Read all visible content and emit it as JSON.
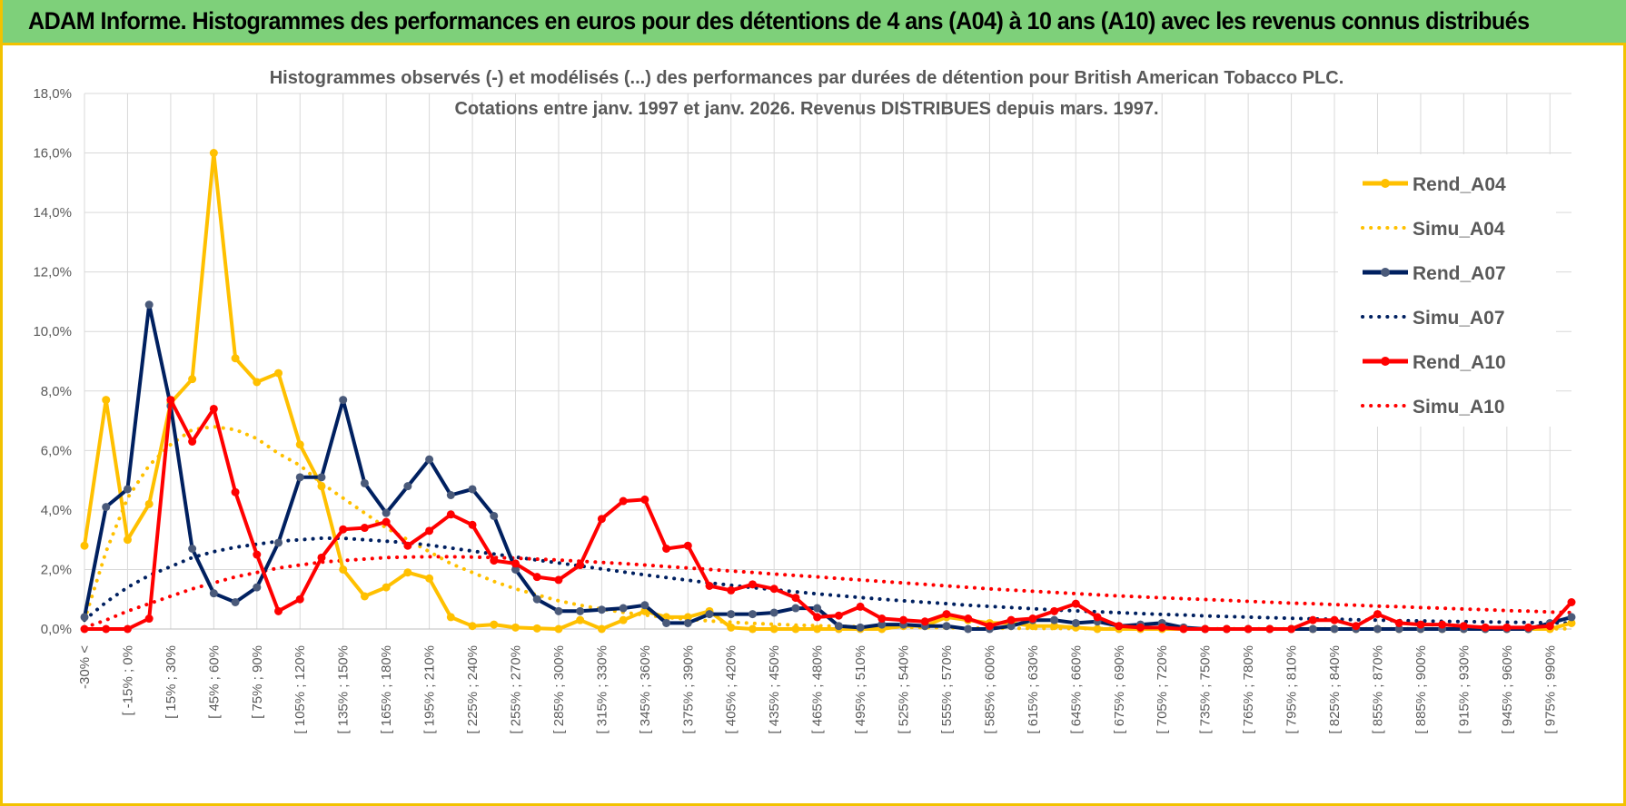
{
  "banner": {
    "title": "ADAM Informe. Histogrammes des performances en euros pour des détentions de 4 ans (A04) à 10 ans (A10) avec les revenus connus distribués"
  },
  "chart_data": {
    "type": "line",
    "title": "Histogrammes observés (-) et modélisés (...) des performances par durées de détention pour British American Tobacco PLC.",
    "subtitle": "Cotations entre janv. 1997 et janv. 2026. Revenus DISTRIBUES depuis mars. 1997.",
    "ylim": [
      0,
      18
    ],
    "y_ticks": [
      "0,0%",
      "2,0%",
      "4,0%",
      "6,0%",
      "8,0%",
      "10,0%",
      "12,0%",
      "14,0%",
      "16,0%",
      "18,0%"
    ],
    "x_tick_labels": [
      "-30% <",
      "[ -15% ; 0%",
      "[ 15% ; 30%",
      "[ 45% ; 60%",
      "[ 75% ; 90%",
      "[ 105% ; 120%",
      "[ 135% ; 150%",
      "[ 165% ; 180%",
      "[ 195% ; 210%",
      "[ 225% ; 240%",
      "[ 255% ; 270%",
      "[ 285% ; 300%",
      "[ 315% ; 330%",
      "[ 345% ; 360%",
      "[ 375% ; 390%",
      "[ 405% ; 420%",
      "[ 435% ; 450%",
      "[ 465% ; 480%",
      "[ 495% ; 510%",
      "[ 525% ; 540%",
      "[ 555% ; 570%",
      "[ 585% ; 600%",
      "[ 615% ; 630%",
      "[ 645% ; 660%",
      "[ 675% ; 690%",
      "[ 705% ; 720%",
      "[ 735% ; 750%",
      "[ 765% ; 780%",
      "[ 795% ; 810%",
      "[ 825% ; 840%",
      "[ 855% ; 870%",
      "[ 885% ; 900%",
      "[ 915% ; 930%",
      "[ 945% ; 960%",
      "[ 975% ; 990%"
    ],
    "n_points": 70,
    "grid": true,
    "legend_position": "right",
    "series": [
      {
        "name": "Rend_A04",
        "style": "solid",
        "color": "#FFC000",
        "values": [
          2.8,
          7.7,
          3.0,
          4.2,
          7.6,
          8.4,
          16.0,
          9.1,
          8.3,
          8.6,
          6.2,
          4.8,
          2.0,
          1.1,
          1.4,
          1.9,
          1.7,
          0.4,
          0.1,
          0.15,
          0.05,
          0.02,
          0.0,
          0.3,
          0.0,
          0.3,
          0.6,
          0.4,
          0.4,
          0.6,
          0.05,
          0.0,
          0.0,
          0.0,
          0.0,
          0.0,
          0.0,
          0.0,
          0.1,
          0.1,
          0.4,
          0.3,
          0.2,
          0.2,
          0.1,
          0.1,
          0.05,
          0.0,
          0.0,
          0.0,
          0.0,
          0.0,
          0.0,
          0.0,
          0.0,
          0.0,
          0.0,
          0.0,
          0.0,
          0.0,
          0.0,
          0.0,
          0.0,
          0.0,
          0.0,
          0.0,
          0.0,
          0.0,
          0.0,
          0.2
        ]
      },
      {
        "name": "Simu_A04",
        "style": "dotted",
        "color": "#FFC000",
        "values": [
          0.3,
          2.6,
          4.4,
          5.5,
          6.2,
          6.7,
          6.8,
          6.7,
          6.4,
          5.9,
          5.5,
          4.9,
          4.4,
          3.9,
          3.4,
          3.0,
          2.6,
          2.2,
          1.9,
          1.6,
          1.35,
          1.15,
          0.95,
          0.8,
          0.67,
          0.56,
          0.47,
          0.39,
          0.33,
          0.27,
          0.23,
          0.19,
          0.16,
          0.13,
          0.11,
          0.09,
          0.08,
          0.07,
          0.06,
          0.05,
          0.04,
          0.035,
          0.03,
          0.025,
          0.02,
          0.018,
          0.015,
          0.013,
          0.011,
          0.01,
          0.01,
          0.01,
          0.01,
          0.01,
          0.01,
          0.01,
          0.01,
          0.01,
          0.01,
          0.01,
          0.01,
          0.01,
          0.01,
          0.01,
          0.01,
          0.01,
          0.01,
          0.01,
          0.01,
          0.01
        ]
      },
      {
        "name": "Rend_A07",
        "style": "solid",
        "color": "#002060",
        "values": [
          0.4,
          4.1,
          4.7,
          10.9,
          7.5,
          2.7,
          1.2,
          0.9,
          1.4,
          2.9,
          5.1,
          5.1,
          7.7,
          4.9,
          3.9,
          4.8,
          5.7,
          4.5,
          4.7,
          3.8,
          2.0,
          1.0,
          0.6,
          0.6,
          0.65,
          0.7,
          0.8,
          0.2,
          0.2,
          0.5,
          0.5,
          0.5,
          0.55,
          0.7,
          0.7,
          0.1,
          0.05,
          0.15,
          0.15,
          0.1,
          0.1,
          0.0,
          0.0,
          0.1,
          0.3,
          0.3,
          0.2,
          0.25,
          0.1,
          0.15,
          0.2,
          0.05,
          0.0,
          0.0,
          0.0,
          0.0,
          0.0,
          0.0,
          0.0,
          0.0,
          0.0,
          0.0,
          0.0,
          0.0,
          0.0,
          0.0,
          0.0,
          0.0,
          0.2,
          0.4
        ]
      },
      {
        "name": "Simu_A07",
        "style": "dotted",
        "color": "#002060",
        "values": [
          0.3,
          0.9,
          1.4,
          1.8,
          2.1,
          2.4,
          2.6,
          2.75,
          2.85,
          2.95,
          3.0,
          3.05,
          3.05,
          3.0,
          2.95,
          2.9,
          2.82,
          2.72,
          2.62,
          2.52,
          2.42,
          2.32,
          2.22,
          2.12,
          2.02,
          1.92,
          1.82,
          1.73,
          1.64,
          1.55,
          1.47,
          1.39,
          1.32,
          1.25,
          1.18,
          1.12,
          1.06,
          1.0,
          0.95,
          0.9,
          0.85,
          0.8,
          0.76,
          0.72,
          0.68,
          0.64,
          0.61,
          0.58,
          0.55,
          0.52,
          0.49,
          0.47,
          0.44,
          0.42,
          0.4,
          0.38,
          0.36,
          0.34,
          0.33,
          0.31,
          0.3,
          0.28,
          0.27,
          0.26,
          0.25,
          0.24,
          0.23,
          0.22,
          0.21,
          0.2
        ]
      },
      {
        "name": "Rend_A10",
        "style": "solid",
        "color": "#FF0000",
        "values": [
          0.0,
          0.0,
          0.0,
          0.35,
          7.7,
          6.3,
          7.4,
          4.6,
          2.5,
          0.6,
          1.0,
          2.4,
          3.35,
          3.4,
          3.6,
          2.8,
          3.3,
          3.85,
          3.5,
          2.3,
          2.2,
          1.75,
          1.65,
          2.15,
          3.7,
          4.3,
          4.35,
          2.7,
          2.8,
          1.45,
          1.3,
          1.5,
          1.35,
          1.05,
          0.4,
          0.45,
          0.75,
          0.35,
          0.3,
          0.25,
          0.5,
          0.35,
          0.1,
          0.3,
          0.35,
          0.6,
          0.85,
          0.4,
          0.1,
          0.05,
          0.05,
          0.0,
          0.0,
          0.0,
          0.0,
          0.0,
          0.0,
          0.3,
          0.3,
          0.1,
          0.5,
          0.2,
          0.15,
          0.15,
          0.1,
          0.05,
          0.05,
          0.05,
          0.1,
          0.9
        ]
      },
      {
        "name": "Simu_A10",
        "style": "dotted",
        "color": "#FF0000",
        "values": [
          0.05,
          0.3,
          0.6,
          0.85,
          1.1,
          1.35,
          1.55,
          1.75,
          1.9,
          2.05,
          2.15,
          2.25,
          2.3,
          2.35,
          2.4,
          2.42,
          2.43,
          2.43,
          2.42,
          2.4,
          2.38,
          2.35,
          2.32,
          2.28,
          2.24,
          2.2,
          2.15,
          2.1,
          2.05,
          2.0,
          1.95,
          1.9,
          1.85,
          1.8,
          1.75,
          1.7,
          1.65,
          1.6,
          1.55,
          1.5,
          1.45,
          1.4,
          1.35,
          1.31,
          1.27,
          1.23,
          1.19,
          1.15,
          1.11,
          1.08,
          1.05,
          1.02,
          0.99,
          0.96,
          0.93,
          0.9,
          0.87,
          0.85,
          0.82,
          0.8,
          0.77,
          0.75,
          0.72,
          0.7,
          0.67,
          0.65,
          0.62,
          0.6,
          0.57,
          0.55
        ]
      }
    ]
  }
}
